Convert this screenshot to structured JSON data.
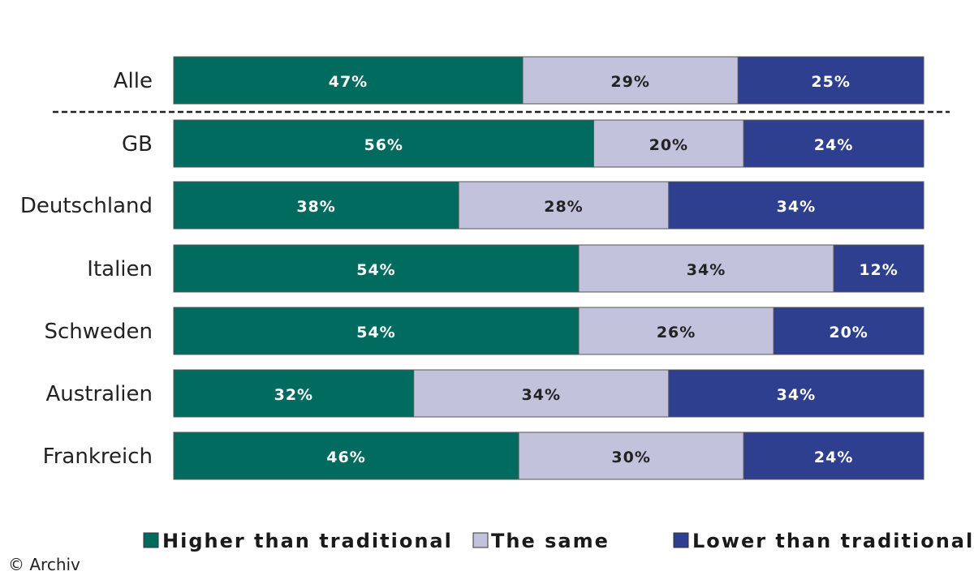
{
  "chart_data": {
    "type": "bar",
    "orientation": "horizontal",
    "stacked": true,
    "categories": [
      "Alle",
      "GB",
      "Deutschland",
      "Italien",
      "Schweden",
      "Australien",
      "Frankreich"
    ],
    "series": [
      {
        "name": "Higher than traditional",
        "values": [
          47,
          56,
          38,
          54,
          54,
          32,
          46
        ],
        "labels": [
          "47%",
          "56%",
          "38%",
          "54%",
          "54%",
          "32%",
          "46%"
        ]
      },
      {
        "name": "The same",
        "values": [
          29,
          20,
          28,
          34,
          26,
          34,
          30
        ],
        "labels": [
          "29%",
          "20%",
          "28%",
          "34%",
          "26%",
          "34%",
          "30%"
        ]
      },
      {
        "name": "Lower than traditional",
        "values": [
          25,
          24,
          34,
          12,
          20,
          34,
          24
        ],
        "labels": [
          "25%",
          "24%",
          "34%",
          "12%",
          "20%",
          "34%",
          "24%"
        ]
      }
    ],
    "colors": [
      "#006b5e",
      "#c2c2dc",
      "#2e3f8f"
    ],
    "label_colors": [
      "#ffffff",
      "#222222",
      "#ffffff"
    ],
    "separator_after_category": "Alle",
    "legend_position": "bottom",
    "title": "",
    "xlabel": "",
    "ylabel": "",
    "grid": false
  },
  "credit": "© Archiv"
}
